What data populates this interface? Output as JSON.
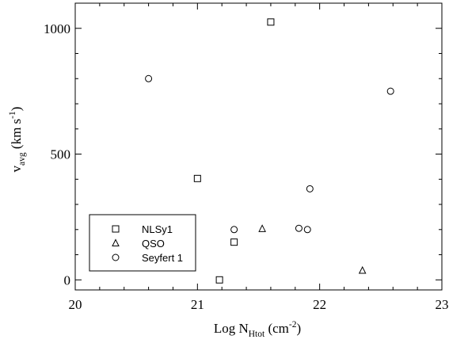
{
  "chart_data": {
    "type": "scatter",
    "xlabel": {
      "main": "Log N",
      "sub": "Htot",
      "unit_open": " (cm",
      "sup": "-2",
      "unit_close": ")"
    },
    "ylabel": {
      "main": "v",
      "sub": "avg",
      "unit_open": " (km s",
      "sup": "-1",
      "unit_close": ")"
    },
    "xlim": [
      20,
      23
    ],
    "ylim": [
      -40,
      1100
    ],
    "xticks": [
      {
        "value": 20,
        "label": "20"
      },
      {
        "value": 21,
        "label": "21"
      },
      {
        "value": 22,
        "label": "22"
      },
      {
        "value": 23,
        "label": "23"
      }
    ],
    "yticks": [
      {
        "value": 0,
        "label": "0"
      },
      {
        "value": 500,
        "label": "500"
      },
      {
        "value": 1000,
        "label": "1000"
      }
    ],
    "x_minor_step": 0.2,
    "y_minor_step": 100,
    "grid": false,
    "legend_position": "bottom-left",
    "series": [
      {
        "name": "NLSy1",
        "marker": "square",
        "points": [
          [
            21.6,
            1025
          ],
          [
            21.0,
            403
          ],
          [
            21.3,
            150
          ],
          [
            21.18,
            0
          ]
        ]
      },
      {
        "name": "QSO",
        "marker": "triangle",
        "points": [
          [
            21.53,
            203
          ],
          [
            22.35,
            37
          ]
        ]
      },
      {
        "name": "Seyfert 1",
        "marker": "circle",
        "points": [
          [
            20.6,
            800
          ],
          [
            22.58,
            750
          ],
          [
            21.92,
            362
          ],
          [
            21.3,
            200
          ],
          [
            21.83,
            205
          ],
          [
            21.9,
            200
          ]
        ]
      }
    ]
  }
}
